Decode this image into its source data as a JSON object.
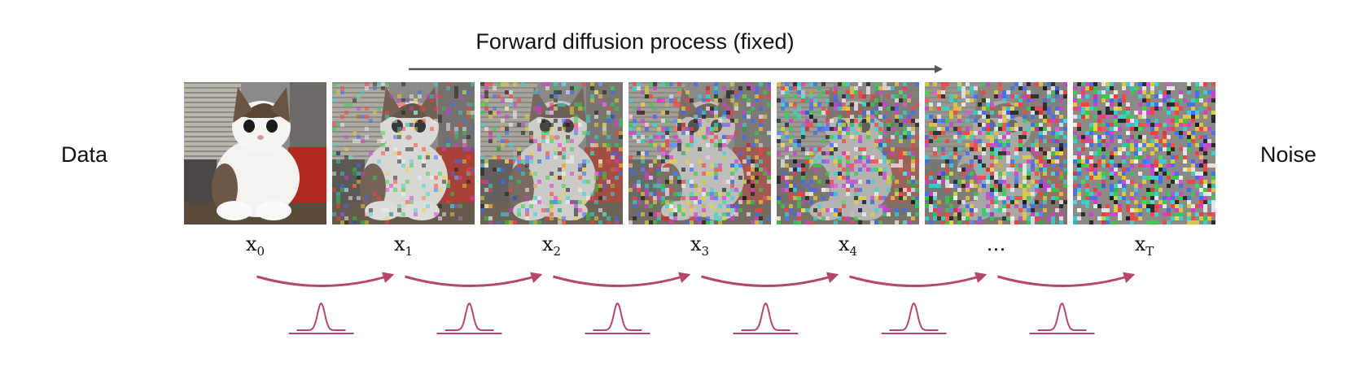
{
  "title": "Forward diffusion process (fixed)",
  "left_label": "Data",
  "right_label": "Noise",
  "steps": [
    {
      "base": "x",
      "sub": "0",
      "noise": 0.0
    },
    {
      "base": "x",
      "sub": "1",
      "noise": 0.3
    },
    {
      "base": "x",
      "sub": "2",
      "noise": 0.45
    },
    {
      "base": "x",
      "sub": "3",
      "noise": 0.6
    },
    {
      "base": "x",
      "sub": "4",
      "noise": 0.72
    },
    {
      "base": "…",
      "sub": "",
      "noise": 0.86
    },
    {
      "base": "x",
      "sub": "T",
      "noise": 1.0
    }
  ],
  "colors": {
    "arrow": "#b5476d",
    "axis_arrow": "#555555",
    "text": "#111111"
  }
}
